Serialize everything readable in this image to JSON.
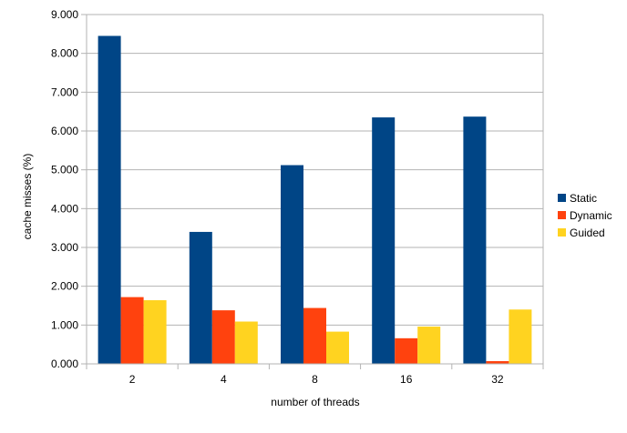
{
  "chart_data": {
    "type": "bar",
    "title": "",
    "xlabel": "number of threads",
    "ylabel": "cache misses (%)",
    "ylim": [
      0,
      9
    ],
    "y_tick_step": 1,
    "y_tick_labels": [
      "0.000",
      "1.000",
      "2.000",
      "3.000",
      "4.000",
      "5.000",
      "6.000",
      "7.000",
      "8.000",
      "9.000"
    ],
    "categories": [
      "2",
      "4",
      "8",
      "16",
      "32"
    ],
    "grid": true,
    "legend_position": "right",
    "series": [
      {
        "name": "Static",
        "color": "#004586",
        "values": [
          8.45,
          3.4,
          5.12,
          6.35,
          6.37
        ]
      },
      {
        "name": "Dynamic",
        "color": "#ff420e",
        "values": [
          1.72,
          1.38,
          1.44,
          0.66,
          0.07
        ]
      },
      {
        "name": "Guided",
        "color": "#ffd320",
        "values": [
          1.64,
          1.09,
          0.83,
          0.96,
          1.4
        ]
      }
    ]
  }
}
